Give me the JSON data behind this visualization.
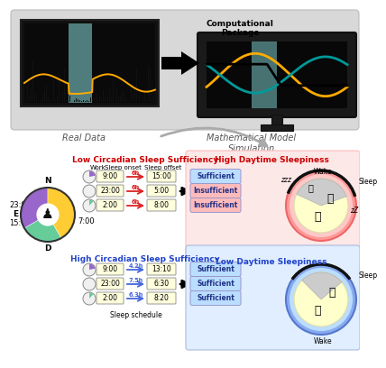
{
  "fig_bg": "#ffffff",
  "top_panel_bg": "#d8d8d8",
  "label_computational": "Computational\nPackage",
  "label_real_data": "Real Data",
  "label_math_model": "Mathematical Model\nSimulation",
  "label_low_circ": "Low Circadian Sleep Sufficiency",
  "label_high_circ": "High Circadian Sleep Sufficiency",
  "label_high_sleep": "High Daytime Sleepiness",
  "label_low_sleep": "Low Daytime Sleepiness",
  "low_circ_color": "#cc0000",
  "high_circ_color": "#2244cc",
  "high_sleep_color": "#cc0000",
  "low_sleep_color": "#2244cc",
  "work_header": "Work",
  "sleep_onset_header": "Sleep onset",
  "sleep_offset_header": "Sleep offset",
  "sleep_schedule_label": "Sleep schedule",
  "top_rows": [
    {
      "onset": "9:00",
      "duration": "6h",
      "offset": "15:00",
      "dur_color": "#dd2222"
    },
    {
      "onset": "23:00",
      "duration": "6h",
      "offset": "5:00",
      "dur_color": "#dd2222"
    },
    {
      "onset": "2:00",
      "duration": "6h",
      "offset": "8:00",
      "dur_color": "#dd2222"
    }
  ],
  "bottom_rows": [
    {
      "onset": "9:00",
      "duration": "4.2h",
      "offset": "13:10",
      "dur_color": "#4466dd"
    },
    {
      "onset": "23:00",
      "duration": "7.5h",
      "offset": "6:30",
      "dur_color": "#4466dd"
    },
    {
      "onset": "2:00",
      "duration": "6.3h",
      "offset": "8:20",
      "dur_color": "#4466dd"
    }
  ],
  "top_sufficiency": [
    "Sufficient",
    "Insufficient",
    "Insufficient"
  ],
  "bottom_sufficiency": [
    "Sufficient",
    "Sufficient",
    "Sufficient"
  ],
  "suf_colors_top": [
    "#bbddff",
    "#ffbbbb",
    "#ffbbbb"
  ],
  "suf_colors_bottom": [
    "#bbddff",
    "#bbddff",
    "#bbddff"
  ],
  "high_panel_bg": "#fde8e8",
  "low_panel_bg": "#e0eeff",
  "N_color": "#9966cc",
  "E_color": "#66cc99",
  "D_color": "#ffcc33",
  "clock_label_23": "23:00",
  "clock_label_7": "7:00",
  "clock_label_15": "15:00",
  "clock_N": "N",
  "clock_E": "E",
  "clock_D": "D"
}
